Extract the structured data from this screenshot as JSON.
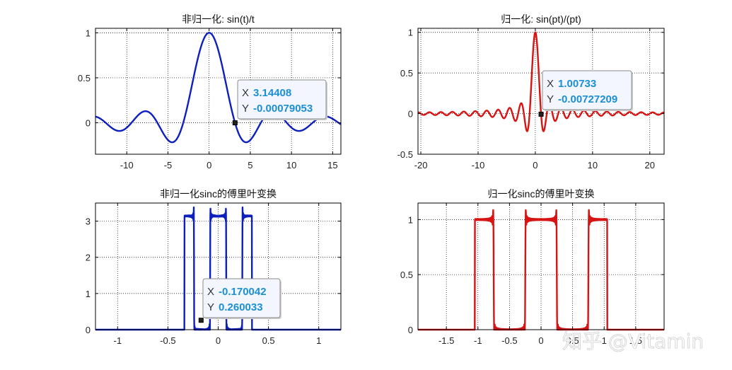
{
  "chart_data": [
    {
      "type": "line",
      "title": "非归一化: sin(t)/t",
      "function": "sin(t)/t",
      "color": "#0d1fbf",
      "xlim": [
        -13.8,
        16
      ],
      "ylim": [
        -0.35,
        1.05
      ],
      "xticks": [
        -10,
        -5,
        0,
        5,
        10,
        15
      ],
      "yticks": [
        0,
        0.5,
        1
      ],
      "grid": true,
      "datatip": {
        "x_label": "X",
        "y_label": "Y",
        "x": "3.14408",
        "y": "-0.00079053"
      }
    },
    {
      "type": "line",
      "title": "归一化: sin(pt)/(pt)",
      "function": "sin(pi t)/(pi t)",
      "color": "#d61414",
      "xlim": [
        -20.5,
        22.5
      ],
      "ylim": [
        -0.5,
        1.05
      ],
      "xticks": [
        -20,
        -10,
        0,
        10,
        20
      ],
      "yticks": [
        -0.5,
        0,
        0.5,
        1
      ],
      "grid": true,
      "datatip": {
        "x_label": "X",
        "y_label": "Y",
        "x": "1.00733",
        "y": "-0.00727209"
      }
    },
    {
      "type": "line",
      "title": "非归一化sinc的傅里叶变换",
      "description": "Rectangular spectrum of height pi on [-1/(2pi), 1/(2pi)] with Gibbs ripple at the edges",
      "color": "#0d1fbf",
      "xlim": [
        -1.22,
        1.22
      ],
      "ylim": [
        0,
        3.5
      ],
      "xticks": [
        -1,
        -0.5,
        0,
        0.5,
        1
      ],
      "yticks": [
        0,
        1,
        2,
        3
      ],
      "plateau": 3.14,
      "half_width": 0.16,
      "grid": true,
      "datatip": {
        "x_label": "X",
        "y_label": "Y",
        "x": "-0.170042",
        "y": "0.260033"
      }
    },
    {
      "type": "line",
      "title": "归一化sinc的傅里叶变换",
      "description": "Rectangular spectrum of height 1 on [-0.5, 0.5] with Gibbs ripple at the edges",
      "color": "#d61414",
      "xlim": [
        -1.95,
        1.95
      ],
      "ylim": [
        0,
        1.15
      ],
      "xticks": [
        -1.5,
        -1,
        -0.5,
        0,
        0.5,
        1,
        1.5
      ],
      "xticklabels": [
        "-1.5",
        "-1",
        "-0.5",
        "0",
        "0.5",
        "1",
        "1.5"
      ],
      "yticks": [
        0,
        0.5,
        1
      ],
      "plateau": 1.0,
      "half_width": 0.5,
      "grid": true
    }
  ],
  "watermark": "知乎 @Vitamin"
}
